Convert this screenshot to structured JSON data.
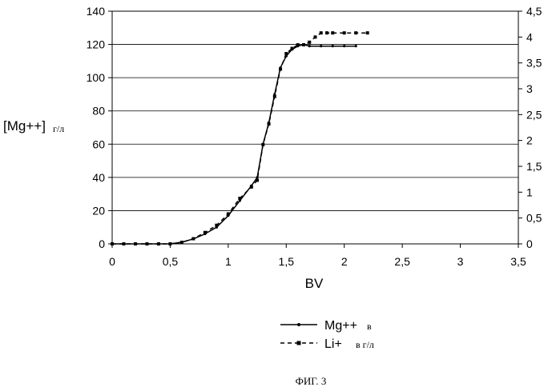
{
  "chart_data": {
    "type": "line",
    "caption": "ФИГ. 3",
    "xlabel": "BV",
    "ylabel": "[Mg++]",
    "ylabel_unit": "г/л",
    "xlim": [
      0,
      3.5
    ],
    "ylim": [
      0,
      140
    ],
    "y2lim": [
      0,
      4.5
    ],
    "grid": true,
    "legend_position": "bottom-center",
    "x_ticks": [
      "0",
      "0,5",
      "1",
      "1,5",
      "2",
      "2,5",
      "3",
      "3,5"
    ],
    "x_tick_values": [
      0,
      0.5,
      1,
      1.5,
      2,
      2.5,
      3,
      3.5
    ],
    "y_ticks": [
      "0",
      "20",
      "40",
      "60",
      "80",
      "100",
      "120",
      "140"
    ],
    "y_tick_values": [
      0,
      20,
      40,
      60,
      80,
      100,
      120,
      140
    ],
    "y2_ticks": [
      "0",
      "0,5",
      "1",
      "1,5",
      "2",
      "2,5",
      "3",
      "3,5",
      "4",
      "4,5"
    ],
    "y2_tick_values": [
      0,
      0.5,
      1,
      1.5,
      2,
      2.5,
      3,
      3.5,
      4,
      4.5
    ],
    "series": [
      {
        "name": "Mg++",
        "legend_suffix": "в",
        "axis": "left",
        "style": "solid",
        "color": "#000000",
        "x": [
          0,
          0.1,
          0.2,
          0.3,
          0.4,
          0.5,
          0.6,
          0.7,
          0.8,
          0.9,
          1.0,
          1.1,
          1.2,
          1.25,
          1.3,
          1.35,
          1.4,
          1.45,
          1.5,
          1.55,
          1.6,
          1.65,
          1.7,
          1.8,
          1.9,
          2.0,
          2.1
        ],
        "y": [
          0,
          0,
          0,
          0,
          0,
          0,
          1,
          3,
          6,
          10,
          17,
          26,
          35,
          40,
          60,
          73,
          90,
          106,
          113,
          117,
          119,
          120,
          119,
          119,
          119,
          119,
          119
        ]
      },
      {
        "name": "Li+",
        "legend_suffix": "в г/л",
        "axis": "right",
        "style": "dashed",
        "color": "#000000",
        "x": [
          0,
          0.1,
          0.2,
          0.3,
          0.4,
          0.5,
          0.6,
          0.7,
          0.8,
          0.9,
          1.0,
          1.1,
          1.2,
          1.25,
          1.3,
          1.35,
          1.4,
          1.45,
          1.5,
          1.55,
          1.6,
          1.65,
          1.7,
          1.75,
          1.8,
          1.85,
          1.9,
          2.0,
          2.1,
          2.2
        ],
        "y": [
          0,
          0,
          0,
          0,
          0,
          0,
          0.03,
          0.1,
          0.22,
          0.36,
          0.58,
          0.88,
          1.1,
          1.23,
          1.92,
          2.32,
          2.85,
          3.38,
          3.68,
          3.78,
          3.85,
          3.85,
          3.9,
          4.0,
          4.08,
          4.08,
          4.08,
          4.08,
          4.08,
          4.08
        ]
      }
    ]
  }
}
